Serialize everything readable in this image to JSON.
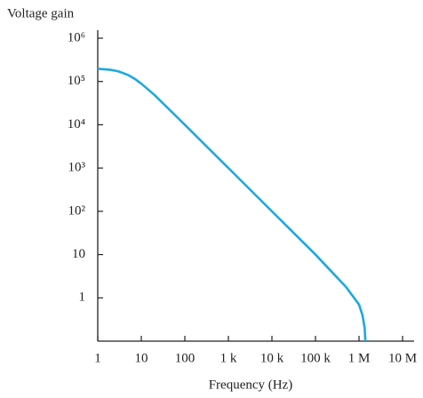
{
  "chart_data": {
    "type": "line",
    "title": "Voltage gain",
    "x_label": "Frequency (Hz)",
    "x": [
      1,
      2,
      3,
      5,
      7,
      10,
      20,
      100,
      1000,
      10000,
      100000,
      500000,
      800000,
      1000000,
      1200000,
      1350000,
      1400000
    ],
    "series": [
      {
        "name": "Voltage gain",
        "color": "#1ea8e0",
        "values": [
          196000,
          186000,
          171000,
          141000,
          116000,
          89000,
          49000,
          10000,
          1000,
          100,
          10,
          1.8,
          0.95,
          0.7,
          0.4,
          0.2,
          0.1
        ]
      }
    ],
    "xlim": [
      1,
      10000000
    ],
    "ylim": [
      0.1,
      1000000
    ],
    "log_x": true,
    "log_y": true,
    "grid": false,
    "xticks": [
      1,
      10,
      100,
      {
        "value": 1000,
        "label": "1 k"
      },
      {
        "value": 10000,
        "label": "10 k"
      },
      {
        "value": 100000,
        "label": "100 k"
      },
      {
        "value": 1000000,
        "label": "1 M"
      },
      {
        "value": 10000000,
        "label": "10 M"
      }
    ],
    "yticks": [
      1,
      10,
      {
        "value": 100,
        "label": "10²"
      },
      {
        "value": 1000,
        "label": "10³"
      },
      {
        "value": 10000,
        "label": "10⁴"
      },
      {
        "value": 100000,
        "label": "10⁵"
      },
      {
        "value": 1000000,
        "label": "10⁶"
      }
    ]
  }
}
